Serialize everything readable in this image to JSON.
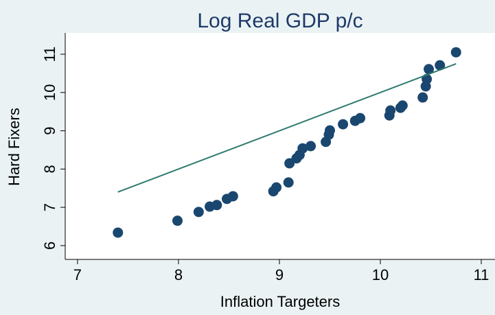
{
  "chart_data": {
    "type": "scatter",
    "title": "Log Real GDP p/c",
    "x_label": "Inflation Targeters",
    "y_label": "Hard Fixers",
    "xlim": [
      6.878,
      11.136
    ],
    "ylim": [
      5.64,
      11.52
    ],
    "xticks": [
      7,
      8,
      9,
      10,
      11
    ],
    "yticks": [
      6,
      7,
      8,
      9,
      10,
      11
    ],
    "series": [
      {
        "type": "scatter",
        "color": "#1a476f",
        "x": [
          7.4,
          7.99,
          8.2,
          8.31,
          8.38,
          8.48,
          8.54,
          8.94,
          8.97,
          9.09,
          9.1,
          9.17,
          9.2,
          9.23,
          9.31,
          9.46,
          9.49,
          9.5,
          9.63,
          9.75,
          9.8,
          10.09,
          10.1,
          10.2,
          10.22,
          10.42,
          10.45,
          10.46,
          10.48,
          10.59,
          10.75
        ],
        "values": [
          6.34,
          6.65,
          6.88,
          7.02,
          7.06,
          7.22,
          7.29,
          7.42,
          7.52,
          7.65,
          8.15,
          8.28,
          8.37,
          8.54,
          8.6,
          8.71,
          8.9,
          9.01,
          9.17,
          9.26,
          9.33,
          9.4,
          9.53,
          9.6,
          9.66,
          9.87,
          10.16,
          10.35,
          10.61,
          10.71,
          11.05
        ]
      },
      {
        "type": "line",
        "color": "#2e7a6e",
        "x": [
          7.4,
          10.75
        ],
        "values": [
          7.4,
          10.75
        ]
      }
    ]
  }
}
